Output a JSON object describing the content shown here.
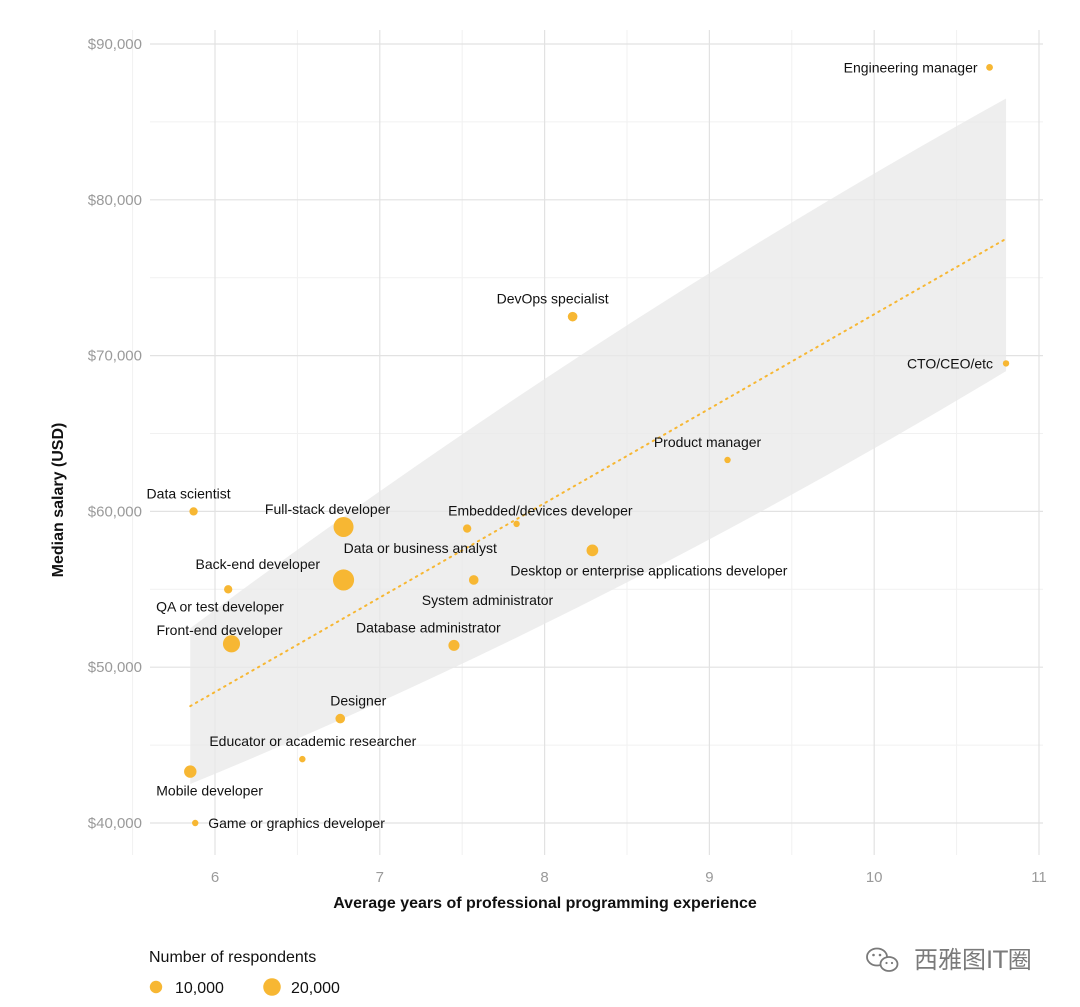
{
  "chart_data": {
    "type": "scatter",
    "title": "",
    "xlabel": "Average years of professional programming experience",
    "ylabel": "Median salary (USD)",
    "xlim": [
      5.6,
      11.05
    ],
    "ylim": [
      38500,
      91000
    ],
    "x_ticks": [
      6,
      7,
      8,
      9,
      10,
      11
    ],
    "x_tick_labels": [
      "6",
      "7",
      "8",
      "9",
      "10",
      "11"
    ],
    "y_ticks": [
      40000,
      50000,
      60000,
      70000,
      80000,
      90000
    ],
    "y_tick_labels": [
      "$40,000",
      "$50,000",
      "$60,000",
      "$70,000",
      "$80,000",
      "$90,000"
    ],
    "grid": true,
    "point_color": "#F7B733",
    "band_color": "#e8e8e8",
    "points": [
      {
        "label": "Engineering manager",
        "x": 10.7,
        "y": 88500,
        "respondents": 3000
      },
      {
        "label": "DevOps specialist",
        "x": 8.17,
        "y": 72500,
        "respondents": 6000
      },
      {
        "label": "CTO/CEO/etc",
        "x": 10.8,
        "y": 69500,
        "respondents": 1000
      },
      {
        "label": "Product manager",
        "x": 9.11,
        "y": 63300,
        "respondents": 2500
      },
      {
        "label": "Data scientist",
        "x": 5.87,
        "y": 60000,
        "respondents": 4500
      },
      {
        "label": "Full-stack developer",
        "x": 6.78,
        "y": 59000,
        "respondents": 26000
      },
      {
        "label": "Embedded/devices developer",
        "x": 7.53,
        "y": 58900,
        "respondents": 4500
      },
      {
        "label": "Data or business analyst",
        "x": 7.83,
        "y": 59200,
        "respondents": 2500
      },
      {
        "label": "Desktop or enterprise applications developer",
        "x": 8.29,
        "y": 57500,
        "respondents": 9000
      },
      {
        "label": "Back-end developer",
        "x": 6.78,
        "y": 55600,
        "respondents": 29000
      },
      {
        "label": "System administrator",
        "x": 7.57,
        "y": 55600,
        "respondents": 6000
      },
      {
        "label": "QA or test developer",
        "x": 6.08,
        "y": 55000,
        "respondents": 4500
      },
      {
        "label": "Front-end developer",
        "x": 6.1,
        "y": 51500,
        "respondents": 19000
      },
      {
        "label": "Database administrator",
        "x": 7.45,
        "y": 51400,
        "respondents": 8000
      },
      {
        "label": "Designer",
        "x": 6.76,
        "y": 46700,
        "respondents": 6000
      },
      {
        "label": "Educator or academic researcher",
        "x": 6.53,
        "y": 44100,
        "respondents": 1000
      },
      {
        "label": "Mobile developer",
        "x": 5.85,
        "y": 43300,
        "respondents": 10000
      },
      {
        "label": "Game or graphics developer",
        "x": 5.88,
        "y": 40000,
        "respondents": 1500
      }
    ],
    "trend_line": {
      "style": "dotted",
      "x": [
        5.85,
        10.8
      ],
      "y": [
        47500,
        77500
      ]
    },
    "confidence_band": {
      "x": [
        5.85,
        10.8
      ],
      "upper": [
        52500,
        86500
      ],
      "lower": [
        42500,
        69000
      ]
    },
    "legend": {
      "title": "Number of respondents",
      "placement": "bottom-left",
      "items": [
        {
          "label": "10,000",
          "respondents": 10000
        },
        {
          "label": "20,000",
          "respondents": 20000
        }
      ]
    }
  },
  "watermark": {
    "text": "西雅图IT圈"
  }
}
